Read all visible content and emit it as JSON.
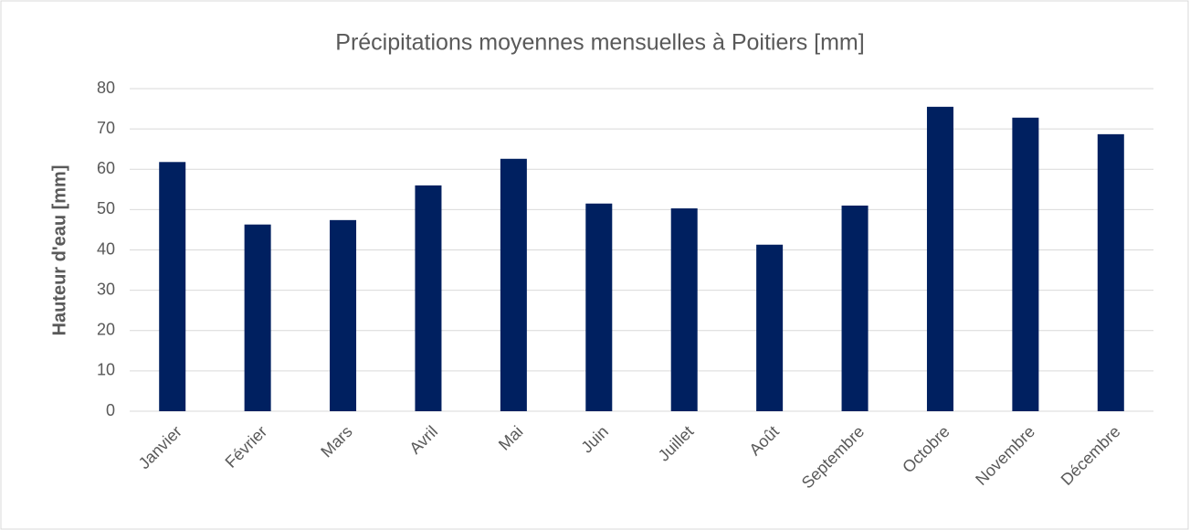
{
  "chart_data": {
    "type": "bar",
    "title": "Précipitations moyennes mensuelles à Poitiers [mm]",
    "y_label": "Hauteur d'eau [mm]",
    "categories": [
      "Janvier",
      "Février",
      "Mars",
      "Avril",
      "Mai",
      "Juin",
      "Juillet",
      "Août",
      "Septembre",
      "Octobre",
      "Novembre",
      "Décembre"
    ],
    "values": [
      61.8,
      46.3,
      47.4,
      56.0,
      62.6,
      51.5,
      50.3,
      41.3,
      51.0,
      75.5,
      72.8,
      68.7
    ],
    "color": "#002060",
    "ylim": [
      0,
      80
    ],
    "yticks": [
      0,
      10,
      20,
      30,
      40,
      50,
      60,
      70,
      80
    ],
    "grid": true
  }
}
